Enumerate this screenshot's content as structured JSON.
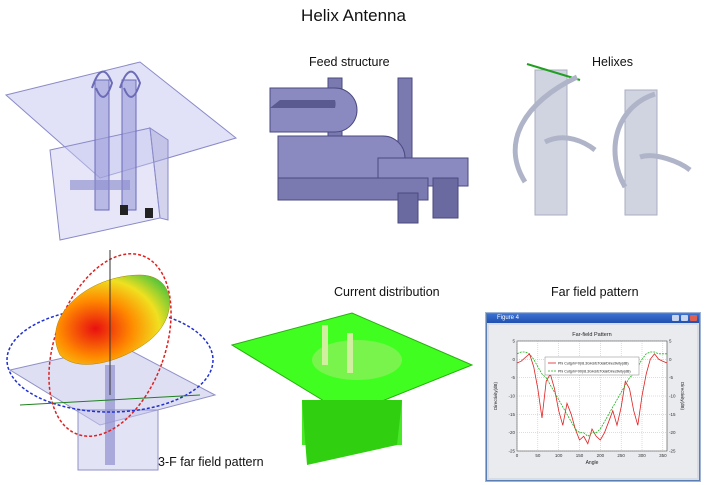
{
  "title": "Helix Antenna",
  "labels": {
    "feed_structure": "Feed structure",
    "helixes": "Helixes",
    "current_distribution": "Current distribution",
    "far_field_pattern": "Far field pattern",
    "pattern_3f": "3-F far field pattern"
  },
  "figure_window": {
    "title": "Figure 4",
    "plot_title": "Far-field Pattern",
    "xlabel": "Angle",
    "ylabel_left": "Directivity(dB)",
    "ylabel_right": "Directivity(dB)",
    "legend": [
      "Phi Cut(phi=0)/8.3GHz/ETotal/Directivity(dB)",
      "Phi Cut(phi=90)/8.3GHz/ETotal/Directivity(dB)"
    ],
    "series_colors": [
      "#e02020",
      "#20b020"
    ],
    "x_ticks": [
      "0",
      "50",
      "100",
      "150",
      "200",
      "250",
      "300",
      "350"
    ],
    "y_ticks": [
      "5",
      "0",
      "-5",
      "-10",
      "-15",
      "-20",
      "-25"
    ]
  },
  "chart_data": {
    "type": "line",
    "title": "Far-field Pattern",
    "xlabel": "Angle",
    "ylabel": "Directivity(dB)",
    "xlim": [
      0,
      360
    ],
    "ylim": [
      -25,
      5
    ],
    "legend": "top-center",
    "series": [
      {
        "name": "Phi Cut(phi=0)/8.3GHz/ETotal/Directivity(dB)",
        "x": [
          0,
          10,
          20,
          30,
          40,
          50,
          60,
          70,
          80,
          90,
          100,
          110,
          120,
          130,
          140,
          150,
          160,
          170,
          180,
          190,
          200,
          210,
          220,
          230,
          240,
          250,
          260,
          270,
          280,
          290,
          300,
          310,
          320,
          330,
          340,
          350,
          360
        ],
        "y": [
          -1,
          -0.5,
          0.5,
          1.5,
          -2,
          -8,
          -16,
          -6,
          -4,
          -8,
          -14,
          -18,
          -12,
          -15,
          -19,
          -22,
          -21,
          -23,
          -19,
          -21,
          -22,
          -20,
          -17,
          -14,
          -18,
          -13,
          -6,
          -8,
          -14,
          -18,
          -10,
          -4,
          0,
          1.5,
          0,
          -0.5,
          -1
        ]
      },
      {
        "name": "Phi Cut(phi=90)/8.3GHz/ETotal/Directivity(dB)",
        "x": [
          0,
          10,
          20,
          30,
          40,
          50,
          60,
          70,
          80,
          90,
          100,
          110,
          120,
          130,
          140,
          150,
          160,
          170,
          180,
          190,
          200,
          210,
          220,
          230,
          240,
          250,
          260,
          270,
          280,
          290,
          300,
          310,
          320,
          330,
          340,
          350,
          360
        ],
        "y": [
          1.5,
          2,
          2,
          1.5,
          0,
          -2,
          -4,
          -5,
          -7,
          -9,
          -11,
          -13,
          -15,
          -17,
          -19,
          -20,
          -20,
          -21,
          -20,
          -20,
          -19,
          -17,
          -15,
          -13,
          -11,
          -9,
          -7,
          -5,
          -4,
          -2,
          0,
          1.5,
          2,
          2,
          1.5,
          1.5,
          1.5
        ]
      }
    ]
  }
}
